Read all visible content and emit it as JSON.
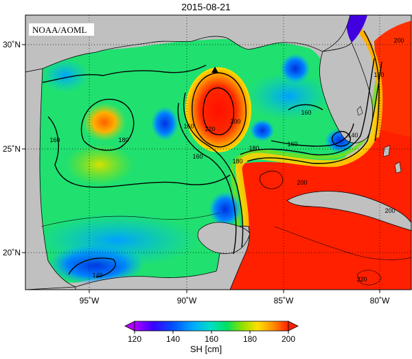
{
  "title": "2015-08-21",
  "source_tag": "NOAA/AOML",
  "map": {
    "region": "Gulf of Mexico",
    "lon_range": [
      -98.5,
      -78
    ],
    "lat_range": [
      18,
      31
    ],
    "lon_ticks": [
      "95˚W",
      "90˚W",
      "85˚W",
      "80˚W"
    ],
    "lat_ticks": [
      "30˚N",
      "25˚N",
      "20˚N"
    ],
    "grid": true,
    "land_color": "#c0c0c0",
    "marker": {
      "type": "triangle",
      "lon": -88.3,
      "lat": 28.7
    }
  },
  "contour_labels": [
    "160",
    "180",
    "220",
    "200",
    "160",
    "180",
    "160",
    "180",
    "160",
    "140",
    "200",
    "200",
    "180",
    "200",
    "140",
    "220",
    "160"
  ],
  "colorbar": {
    "label": "SH [cm]",
    "min": 120,
    "max": 200,
    "ticks": [
      "120",
      "140",
      "160",
      "180",
      "200"
    ],
    "colors": [
      "#b000ff",
      "#3a00ff",
      "#0050ff",
      "#00aaff",
      "#00e0c0",
      "#00e060",
      "#90e000",
      "#ffe000",
      "#ff9000",
      "#ff2000"
    ]
  }
}
